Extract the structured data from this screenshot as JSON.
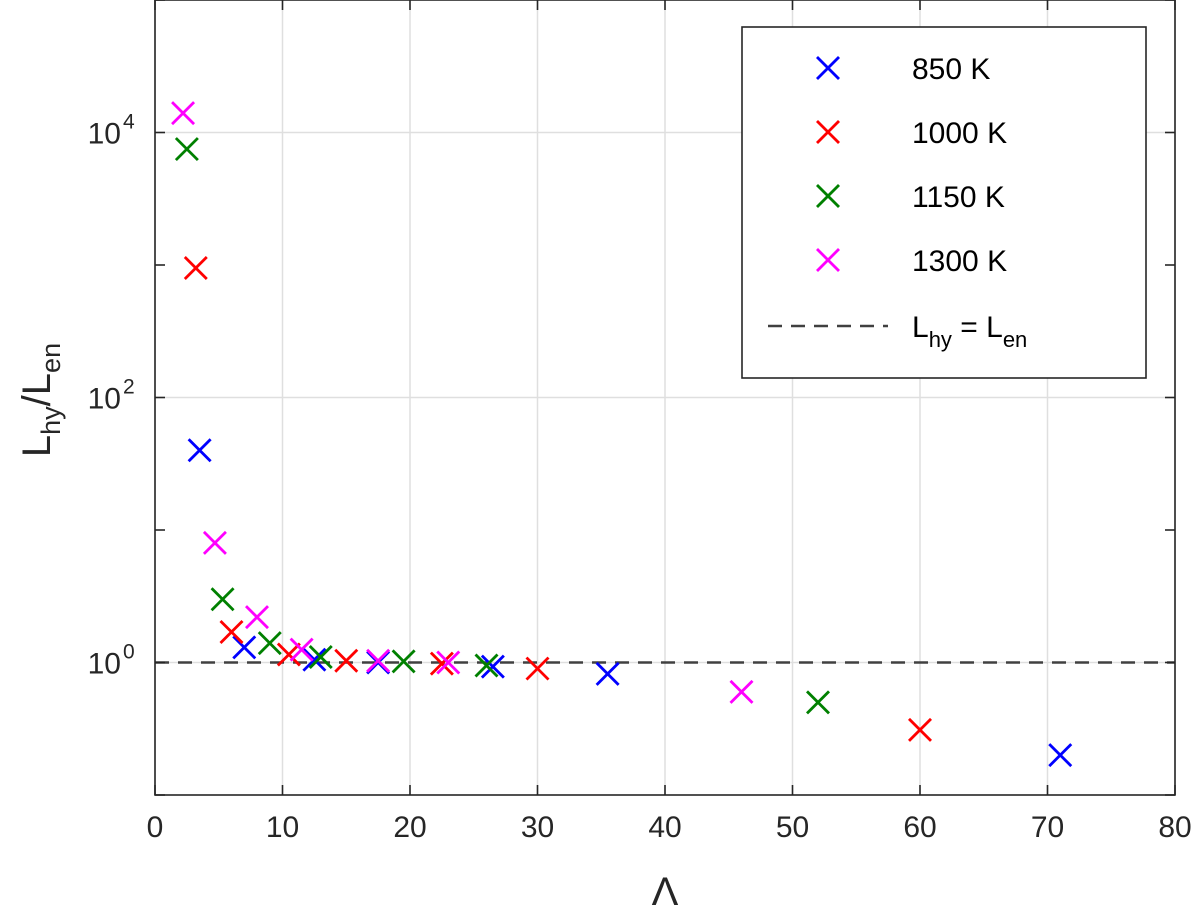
{
  "chart_data": {
    "type": "scatter",
    "title": "",
    "xlabel": "Λ",
    "ylabel": {
      "main": "L",
      "sub1": "hy",
      "slash": "/L",
      "sub2": "en"
    },
    "xlim": [
      0,
      80
    ],
    "ylim_log10": [
      -1,
      5
    ],
    "yscale": "log",
    "x_ticks": [
      "0",
      "10",
      "20",
      "30",
      "40",
      "50",
      "60",
      "70",
      "80"
    ],
    "y_ticks": [
      {
        "base": "10",
        "exp": "0"
      },
      {
        "base": "10",
        "exp": "2"
      },
      {
        "base": "10",
        "exp": "4"
      }
    ],
    "grid": true,
    "legend_position": "top-right",
    "series": [
      {
        "name": "850 K",
        "color": "#0000ff",
        "marker": "x",
        "points": [
          [
            3.5,
            40
          ],
          [
            7,
            1.3
          ],
          [
            12.5,
            1.05
          ],
          [
            17.5,
            1.0
          ],
          [
            26.5,
            0.93
          ],
          [
            35.5,
            0.82
          ],
          [
            71,
            0.2
          ]
        ]
      },
      {
        "name": "1000 K",
        "color": "#ff0000",
        "marker": "x",
        "points": [
          [
            3.2,
            950
          ],
          [
            6,
            1.7
          ],
          [
            10.5,
            1.15
          ],
          [
            15,
            1.03
          ],
          [
            22.5,
            0.98
          ],
          [
            30,
            0.9
          ],
          [
            60,
            0.31
          ]
        ]
      },
      {
        "name": "1150 K",
        "color": "#008000",
        "marker": "x",
        "points": [
          [
            2.5,
            7500
          ],
          [
            5.3,
            3.0
          ],
          [
            9,
            1.4
          ],
          [
            13,
            1.1
          ],
          [
            19.5,
            1.02
          ],
          [
            26,
            0.95
          ],
          [
            52,
            0.5
          ]
        ]
      },
      {
        "name": "1300 K",
        "color": "#ff00ff",
        "marker": "x",
        "points": [
          [
            2.2,
            14000
          ],
          [
            4.7,
            8.0
          ],
          [
            8,
            2.2
          ],
          [
            11.5,
            1.25
          ],
          [
            17.5,
            1.03
          ],
          [
            23,
            1.0
          ],
          [
            46,
            0.6
          ]
        ]
      }
    ],
    "reference_line": {
      "color": "#404040",
      "y": 1,
      "label": {
        "main": "L",
        "sub1": "hy",
        "eq": " = L",
        "sub2": "en"
      }
    }
  }
}
